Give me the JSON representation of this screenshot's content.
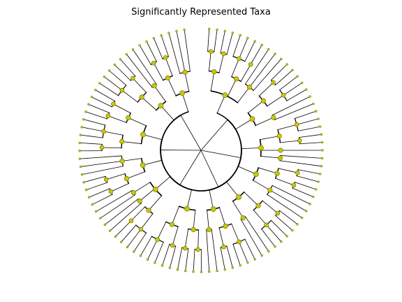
{
  "title": "Significantly Represented Taxa",
  "colors": {
    "node_fill": "#c8c800",
    "node_edge": "#6b6b00",
    "branch": "#000000"
  }
}
